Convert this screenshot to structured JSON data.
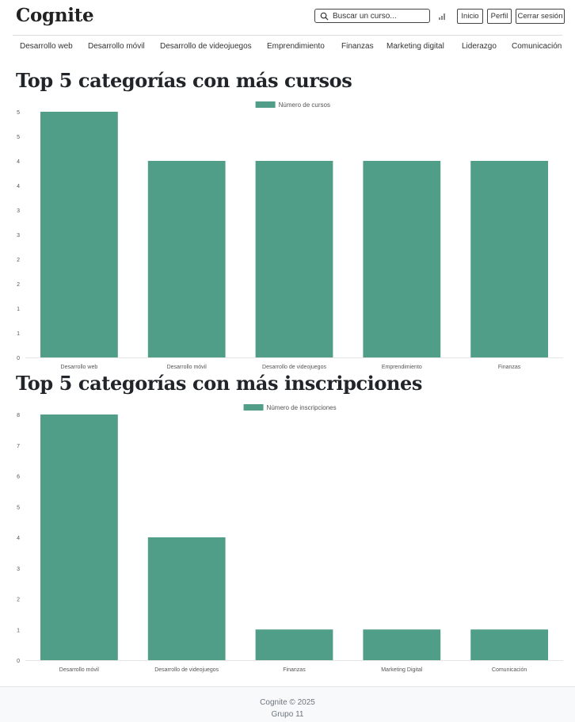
{
  "app": {
    "name": "Cognite"
  },
  "header": {
    "search_placeholder": "Buscar un curso...",
    "buttons": {
      "home": "Inicio",
      "profile": "Perfil",
      "logout": "Cerrar sesión"
    }
  },
  "nav": {
    "items": [
      "Desarrollo web",
      "Desarrollo móvil",
      "Desarrollo de videojuegos",
      "Emprendimiento",
      "Finanzas",
      "Marketing digital",
      "Liderazgo",
      "Comunicación"
    ]
  },
  "sections": {
    "courses_title": "Top 5 categorías con más cursos",
    "enrollments_title": "Top 5 categorías con más inscripciones"
  },
  "colors": {
    "bar": "#519e88",
    "grid": "#e6e6e6",
    "tick": "#555555"
  },
  "chart_data": [
    {
      "type": "bar",
      "title": "",
      "legend": "Número de cursos",
      "categories": [
        "Desarrollo web",
        "Desarrollo móvil",
        "Desarrollo de videojuegos",
        "Emprendimiento",
        "Finanzas"
      ],
      "values": [
        5,
        4,
        4,
        4,
        4
      ],
      "ylim": [
        0,
        5
      ],
      "yticks": [
        0,
        0.5,
        1,
        1.5,
        2,
        2.5,
        3,
        3.5,
        4,
        4.5,
        5
      ],
      "ytick_labels": [
        "0",
        "1",
        "1",
        "2",
        "2",
        "3",
        "3",
        "4",
        "4",
        "5",
        "5"
      ],
      "legend_position": "top-center",
      "grid": false
    },
    {
      "type": "bar",
      "title": "",
      "legend": "Número de inscripciones",
      "categories": [
        "Desarrollo móvil",
        "Desarrollo de videojuegos",
        "Finanzas",
        "Marketing Digital",
        "Comunicación"
      ],
      "values": [
        8,
        4,
        1,
        1,
        1
      ],
      "ylim": [
        0,
        8
      ],
      "yticks": [
        0,
        1,
        2,
        3,
        4,
        5,
        6,
        7,
        8
      ],
      "ytick_labels": [
        "0",
        "1",
        "2",
        "3",
        "4",
        "5",
        "6",
        "7",
        "8"
      ],
      "legend_position": "top-center",
      "grid": false
    }
  ],
  "footer": {
    "copyright": "Cognite © 2025",
    "group": "Grupo 11"
  }
}
